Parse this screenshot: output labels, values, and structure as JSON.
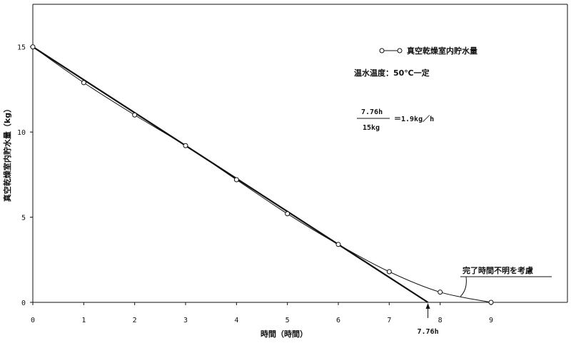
{
  "chart_data": {
    "type": "line",
    "title": "",
    "xlabel": "時間（時間）",
    "ylabel": "真空乾燥室内貯水量（kg）",
    "xlim": [
      0,
      10.5
    ],
    "ylim": [
      0,
      17.5
    ],
    "x_ticks": [
      0,
      1,
      2,
      3,
      4,
      5,
      6,
      7,
      8,
      9
    ],
    "y_ticks": [
      0,
      5,
      10,
      15
    ],
    "grid": false,
    "legend_position": "top-right",
    "series": [
      {
        "name": "真空乾燥室内貯水量",
        "marker": "circle",
        "x": [
          0,
          1,
          2,
          3,
          4,
          5,
          6,
          7,
          8,
          9
        ],
        "y": [
          15.0,
          12.9,
          11.0,
          9.2,
          7.2,
          5.2,
          3.4,
          1.8,
          0.6,
          0.0
        ]
      },
      {
        "name": "",
        "marker": "none",
        "x": [
          0,
          7.76
        ],
        "y": [
          15.0,
          0.0
        ]
      }
    ],
    "annotations": {
      "condition": "温水温度：50℃一定",
      "rate_numerator": "7.76h",
      "rate_denominator": "15kg",
      "rate_result": "＝1.9kg／h",
      "end_label": "7.76h",
      "end_x": 7.76,
      "note": "完了時間不明を考慮",
      "note_target_x": 8.4,
      "note_target_y": 0.35
    }
  }
}
